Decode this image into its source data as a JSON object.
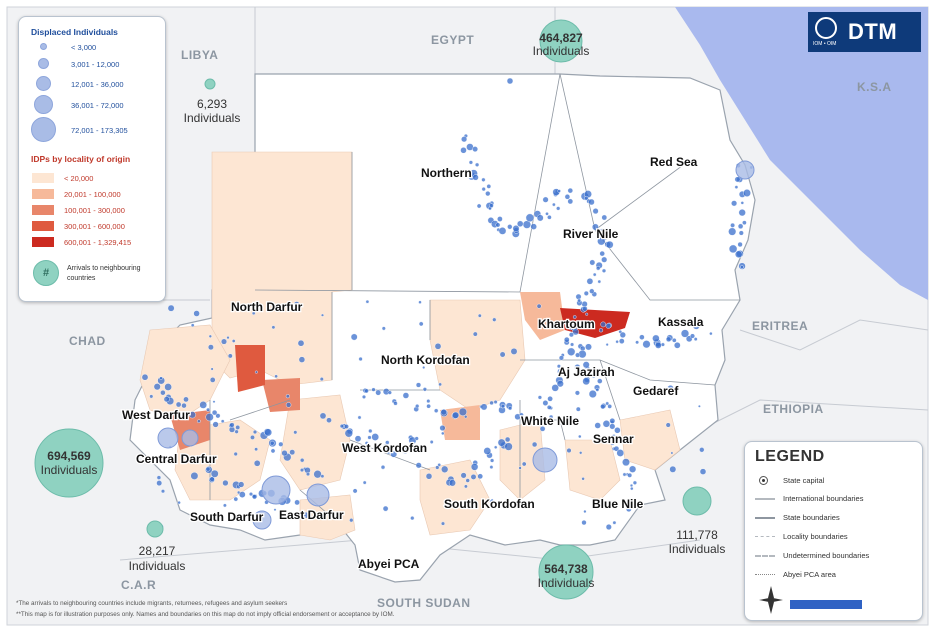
{
  "map": {
    "countries": [
      "LIBYA",
      "EGYPT",
      "K.S.A",
      "CHAD",
      "ERITREA",
      "ETHIOPIA",
      "C.A.R",
      "SOUTH SUDAN"
    ],
    "states": [
      "Northern",
      "Red Sea",
      "River Nile",
      "North Darfur",
      "Khartoum",
      "Kassala",
      "North Kordofan",
      "Aj Jazirah",
      "Gedaref",
      "West Darfur",
      "White Nile",
      "Sennar",
      "Central Darfur",
      "West Kordofan",
      "South Darfur",
      "East Darfur",
      "South Kordofan",
      "Blue Nile",
      "Abyei PCA"
    ],
    "arrivals": [
      {
        "country": "Egypt",
        "value": "464,827",
        "unit": "Individuals"
      },
      {
        "country": "Libya",
        "value": "6,293",
        "unit": "Individuals"
      },
      {
        "country": "Chad",
        "value": "694,569",
        "unit": "Individuals"
      },
      {
        "country": "C.A.R",
        "value": "28,217",
        "unit": "Individuals"
      },
      {
        "country": "South Sudan",
        "value": "564,738",
        "unit": "Individuals"
      },
      {
        "country": "Ethiopia",
        "value": "111,778",
        "unit": "Individuals"
      }
    ]
  },
  "displaced_legend": {
    "title": "Displaced Individuals",
    "classes": [
      "< 3,000",
      "3,001 - 12,000",
      "12,001 - 36,000",
      "36,001 - 72,000",
      "72,001 - 173,305"
    ]
  },
  "origin_legend": {
    "title": "IDPs by locality of origin",
    "classes": [
      {
        "label": "< 20,000",
        "color": "#fde6d3"
      },
      {
        "label": "20,001 - 100,000",
        "color": "#f6b99a"
      },
      {
        "label": "100,001 - 300,000",
        "color": "#e8866a"
      },
      {
        "label": "300,001 - 600,000",
        "color": "#df5a3f"
      },
      {
        "label": "600,001 - 1,329,415",
        "color": "#cc2a20"
      }
    ]
  },
  "arrivals_legend": {
    "symbol": "#",
    "label_1": "Arrivals to neighbouring",
    "label_2": "countries"
  },
  "legend": {
    "title": "LEGEND",
    "items": [
      "State capital",
      "International boundaries",
      "State boundaries",
      "Locality boundaries",
      "Undetermined boundaries",
      "Abyei PCA area"
    ]
  },
  "logo": {
    "text": "DTM",
    "subtext": "IOM • OIM"
  },
  "notes": [
    "*The arrivals to neighbouring countries include migrants, returnees, refugees and asylum seekers",
    "**This map is for illustration purposes only. Names and boundaries on this map do not imply official endorsement or acceptance by IOM."
  ],
  "colors": {
    "water": "#a9b9ee",
    "land": "#f1f2f4",
    "sudan": "#ffffff",
    "dot": "#3a6fcc",
    "arrival": "#8fd2c1",
    "state_label": "#111111"
  }
}
